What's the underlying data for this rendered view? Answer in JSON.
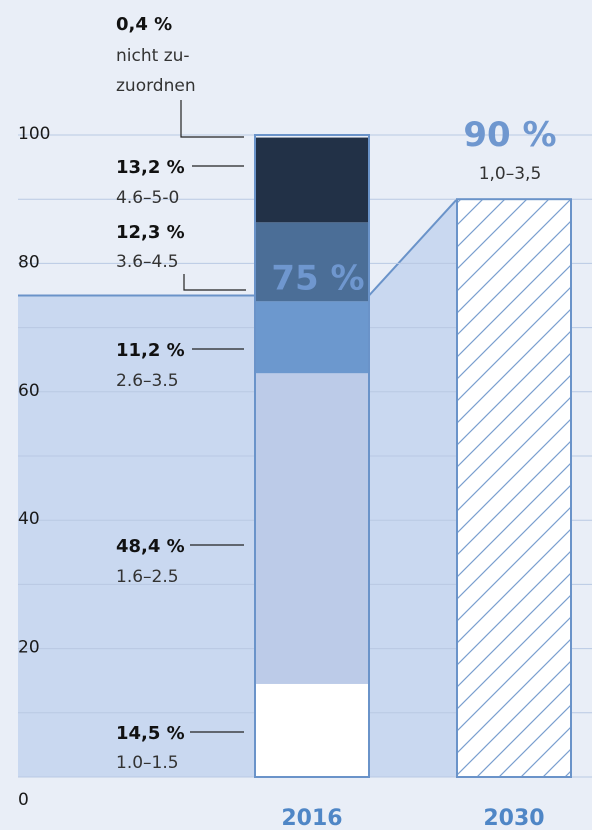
{
  "chart_data": {
    "type": "bar",
    "ylim": [
      0,
      100
    ],
    "yticks": [
      0,
      20,
      40,
      60,
      80,
      100
    ],
    "categories": [
      "2016",
      "2030"
    ],
    "segments_2016": [
      {
        "value": 14.5,
        "pct_label": "14,5 %",
        "range_label": "1.0–1.5",
        "color": "#ffffff"
      },
      {
        "value": 48.4,
        "pct_label": "48,4 %",
        "range_label": "1.6–2.5",
        "color": "#bccbe8"
      },
      {
        "value": 11.2,
        "pct_label": "11,2 %",
        "range_label": "2.6–3.5",
        "color": "#6c98ce"
      },
      {
        "value": 12.3,
        "pct_label": "12,3 %",
        "range_label": "3.6–4.5",
        "color": "#4b6e97"
      },
      {
        "value": 13.2,
        "pct_label": "13,2 %",
        "range_label": "4.6–5-0",
        "color": "#223147"
      },
      {
        "value": 0.4,
        "pct_label": "0,4 %",
        "range_label": "nicht zu-",
        "range_label_2": "zuordnen",
        "color": "#1a1a1a"
      }
    ],
    "share_2016": {
      "value": 75,
      "label": "75 %"
    },
    "target_2030": {
      "value": 90,
      "label": "90 %",
      "sub_label": "1,0–3,5"
    },
    "colors": {
      "accent": "#6f97cf",
      "bar_stroke": "#6a93c9",
      "band": "#c9d8f0",
      "grid": "#b9c9e3",
      "background": "#e9eef7"
    }
  }
}
